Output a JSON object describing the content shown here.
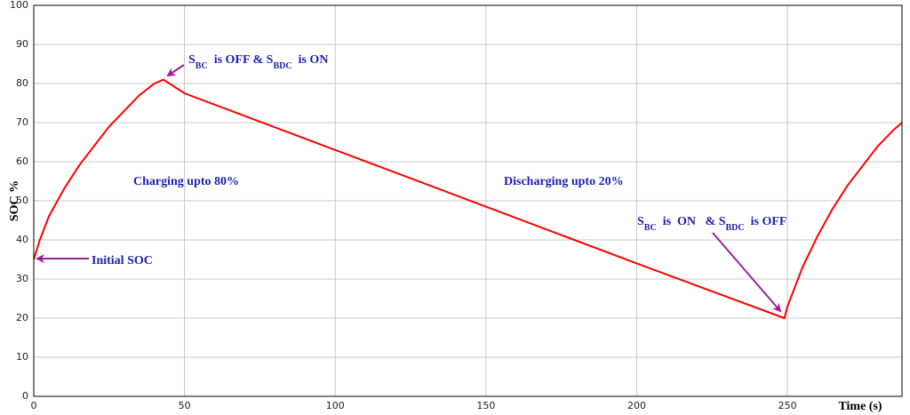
{
  "chart_data": {
    "type": "line",
    "y_label": "SOC  %",
    "x_label": "Time (s)",
    "xlim": [
      0,
      288
    ],
    "ylim": [
      0,
      100
    ],
    "xticks": [
      0,
      50,
      100,
      150,
      200,
      250
    ],
    "yticks": [
      0,
      10,
      20,
      30,
      40,
      50,
      60,
      70,
      80,
      90,
      100
    ],
    "grid": true,
    "x": [
      0,
      2,
      5,
      10,
      15,
      20,
      25,
      30,
      35,
      40,
      43,
      45,
      50,
      100,
      150,
      200,
      249,
      250,
      255,
      260,
      265,
      270,
      275,
      280,
      285,
      288
    ],
    "series": [
      {
        "color": "#ff0000",
        "values": [
          35,
          40,
          46,
          53,
          59,
          64,
          69,
          73,
          77,
          80,
          81,
          80,
          77.5,
          63,
          48.5,
          34,
          20,
          23,
          33,
          41,
          48,
          54,
          59,
          64,
          68,
          70
        ]
      }
    ],
    "annotations": [
      {
        "parts": [
          {
            "text": "Initial SOC"
          }
        ]
      },
      {
        "parts": [
          {
            "text": "S"
          },
          {
            "text": "BC",
            "sub": true
          },
          {
            "text": "  is OFF & S"
          },
          {
            "text": "BDC",
            "sub": true
          },
          {
            "text": "  is ON"
          }
        ]
      },
      {
        "parts": [
          {
            "text": "Charging upto 80%"
          }
        ]
      },
      {
        "parts": [
          {
            "text": "Discharging upto 20%"
          }
        ]
      },
      {
        "parts": [
          {
            "text": "S"
          },
          {
            "text": "BC",
            "sub": true
          },
          {
            "text": "  is  ON   & S"
          },
          {
            "text": "BDC",
            "sub": true
          },
          {
            "text": "  is OFF"
          }
        ]
      }
    ]
  }
}
